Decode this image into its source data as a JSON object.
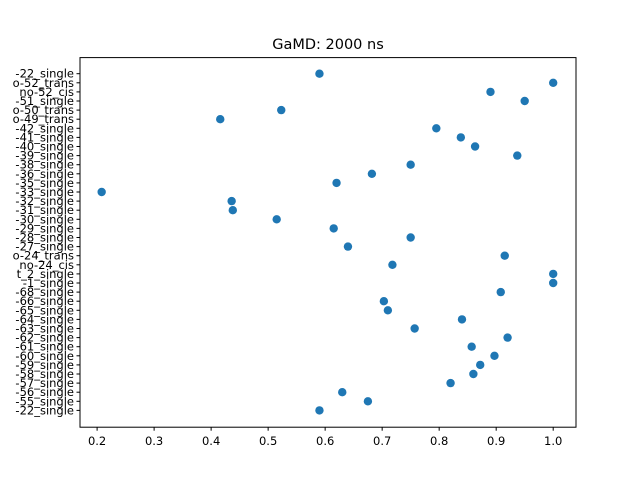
{
  "chart_data": {
    "type": "scatter",
    "title": "GaMD: 2000 ns",
    "xlabel": "",
    "ylabel": "",
    "xlim": [
      0.17,
      1.04
    ],
    "xticks": [
      0.2,
      0.3,
      0.4,
      0.5,
      0.6,
      0.7,
      0.8,
      0.9,
      1.0
    ],
    "xtick_labels": [
      "0.2",
      "0.3",
      "0.4",
      "0.5",
      "0.6",
      "0.7",
      "0.8",
      "0.9",
      "1.0"
    ],
    "grid": false,
    "legend": "none",
    "point_color": "#1f77b4",
    "categories": [
      "-22_single",
      "-55_single",
      "-56_single",
      "-57_single",
      "-58_single",
      "-59_single",
      "-60_single",
      "-61_single",
      "-62_single",
      "-63_single",
      "-64_single",
      "-65_single",
      "-66_single",
      "-68_single",
      "-1_single",
      "t_2_single",
      "no-24_cis",
      "o-24_trans",
      "-27_single",
      "-28_single",
      "-29_single",
      "-30_single",
      "-31_single",
      "-32_single",
      "-33_single",
      "-35_single",
      "-36_single",
      "-38_single",
      "-39_single",
      "-40_single",
      "-41_single",
      "-42_single",
      "o-49_trans",
      "o-50_trans",
      "-51_single",
      "no-52_cis",
      "o-52_trans",
      "-22_single"
    ],
    "values": [
      0.59,
      0.675,
      0.63,
      0.82,
      0.86,
      0.872,
      0.897,
      0.857,
      0.92,
      0.757,
      0.84,
      0.71,
      0.703,
      0.908,
      1.0,
      1.0,
      0.718,
      0.915,
      0.64,
      0.75,
      0.615,
      0.515,
      0.438,
      0.436,
      0.208,
      0.62,
      0.682,
      0.75,
      0.937,
      0.863,
      0.838,
      0.795,
      0.416,
      0.523,
      0.95,
      0.89,
      1.0,
      0.59
    ]
  }
}
